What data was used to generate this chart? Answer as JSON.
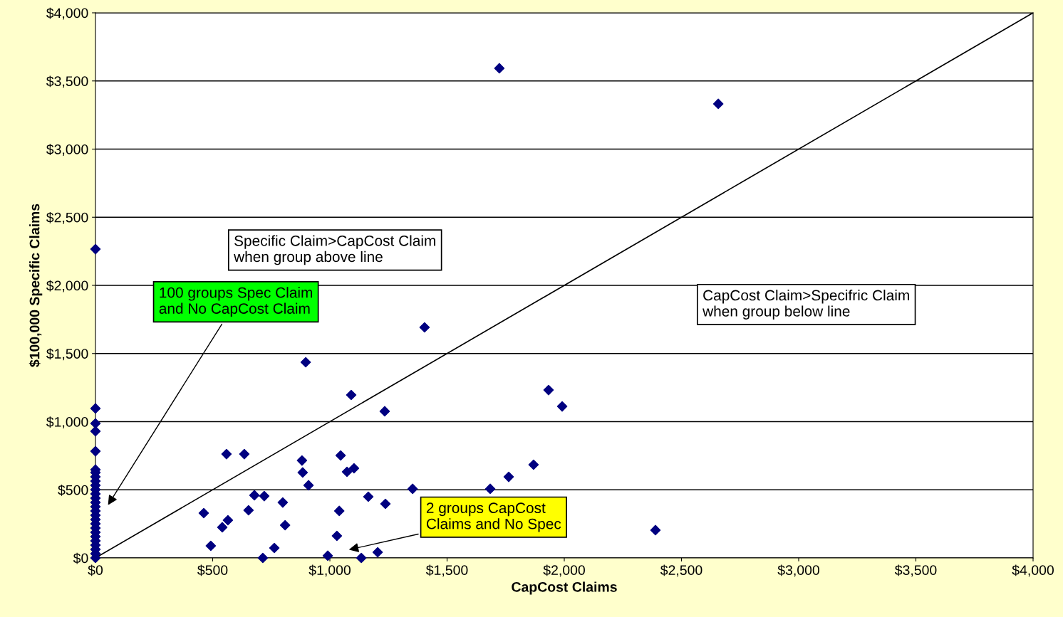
{
  "chart_data": {
    "type": "scatter",
    "xlabel": "CapCost Claims",
    "ylabel": "$100,000 Specific Claims",
    "xlim": [
      0,
      4000
    ],
    "ylim": [
      0,
      4000
    ],
    "xticks": [
      {
        "value": 0,
        "label": "$0"
      },
      {
        "value": 500,
        "label": "$500"
      },
      {
        "value": 1000,
        "label": "$1,000"
      },
      {
        "value": 1500,
        "label": "$1,500"
      },
      {
        "value": 2000,
        "label": "$2,000"
      },
      {
        "value": 2500,
        "label": "$2,500"
      },
      {
        "value": 3000,
        "label": "$3,000"
      },
      {
        "value": 3500,
        "label": "$3,500"
      },
      {
        "value": 4000,
        "label": "$4,000"
      }
    ],
    "yticks": [
      {
        "value": 0,
        "label": "$0"
      },
      {
        "value": 500,
        "label": "$500"
      },
      {
        "value": 1000,
        "label": "$1,000"
      },
      {
        "value": 1500,
        "label": "$1,500"
      },
      {
        "value": 2000,
        "label": "$2,000"
      },
      {
        "value": 2500,
        "label": "$2,500"
      },
      {
        "value": 3000,
        "label": "$3,000"
      },
      {
        "value": 3500,
        "label": "$3,500"
      },
      {
        "value": 4000,
        "label": "$4,000"
      }
    ],
    "grid": "y",
    "marker": "diamond",
    "series": [
      {
        "color": "#000080",
        "x": [
          1723,
          2657,
          0,
          1404,
          897,
          1091,
          1234,
          1933,
          1991,
          559,
          635,
          881,
          1046,
          884,
          1073,
          1103,
          909,
          678,
          720,
          799,
          653,
          462,
          565,
          541,
          809,
          492,
          763,
          714,
          991,
          1030,
          1040,
          1164,
          1237,
          1353,
          1204,
          1134,
          1684,
          1763,
          1869,
          2389,
          0,
          0,
          0,
          0,
          0,
          0,
          0,
          0,
          0,
          0,
          0,
          0,
          0,
          0,
          0,
          0,
          0,
          0,
          0,
          0,
          0,
          0,
          0,
          0,
          0,
          0
        ],
        "values": [
          3593,
          3332,
          2266,
          1692,
          1436,
          1196,
          1076,
          1232,
          1112,
          762,
          762,
          715,
          752,
          627,
          632,
          658,
          533,
          460,
          454,
          407,
          350,
          329,
          277,
          225,
          240,
          89,
          73,
          0,
          16,
          162,
          345,
          449,
          397,
          507,
          42,
          0,
          507,
          595,
          684,
          204,
          1097,
          987,
          930,
          783,
          648,
          627,
          595,
          564,
          533,
          501,
          470,
          439,
          407,
          376,
          345,
          313,
          282,
          251,
          219,
          188,
          157,
          125,
          94,
          63,
          31,
          0
        ]
      },
      {
        "type": "line",
        "color": "#000000",
        "marker": "none",
        "x": [
          0,
          4000
        ],
        "values": [
          0,
          4000
        ]
      }
    ],
    "annotations": [
      "Specific Claim>CapCost Claim\nwhen group above line",
      "CapCost Claim>Specifric Claim\nwhen group below line",
      "100 groups Spec Claim\nand No CapCost Claim",
      "2 groups CapCost\nClaims and No Spec"
    ]
  }
}
